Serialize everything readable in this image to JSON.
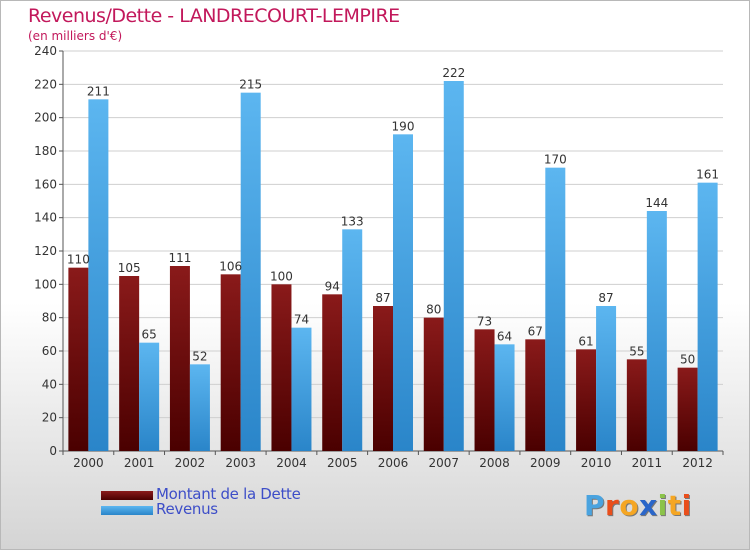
{
  "header": {
    "title": "Revenus/Dette - LANDRECOURT-LEMPIRE",
    "subtitle": "(en milliers d'€)"
  },
  "legend": {
    "items": [
      {
        "label": "Montant de la Dette",
        "color": "#6b0a0a"
      },
      {
        "label": "Revenus",
        "color": "#3a9fe6"
      }
    ]
  },
  "logo": {
    "text": "Proxiti",
    "colors": [
      "#4aa3df",
      "#e94e1b",
      "#f5a623",
      "#2a66c9",
      "#8bc34a",
      "#f5a623",
      "#e94e1b"
    ]
  },
  "chart_data": {
    "type": "bar",
    "title": "Revenus/Dette - LANDRECOURT-LEMPIRE",
    "subtitle": "(en milliers d'€)",
    "categories": [
      "2000",
      "2001",
      "2002",
      "2003",
      "2004",
      "2005",
      "2006",
      "2007",
      "2008",
      "2009",
      "2010",
      "2011",
      "2012"
    ],
    "series": [
      {
        "name": "Montant de la Dette",
        "values": [
          110,
          105,
          111,
          106,
          100,
          94,
          87,
          80,
          73,
          67,
          61,
          55,
          50
        ],
        "color": "#6b0a0a"
      },
      {
        "name": "Revenus",
        "values": [
          211,
          65,
          52,
          215,
          74,
          133,
          190,
          222,
          64,
          170,
          87,
          144,
          161
        ],
        "color": "#3a9fe6"
      }
    ],
    "ylim": [
      0,
      240
    ],
    "yticks": [
      0,
      20,
      40,
      60,
      80,
      100,
      120,
      140,
      160,
      180,
      200,
      220,
      240
    ],
    "grid": true,
    "legend": "bottom-left"
  }
}
